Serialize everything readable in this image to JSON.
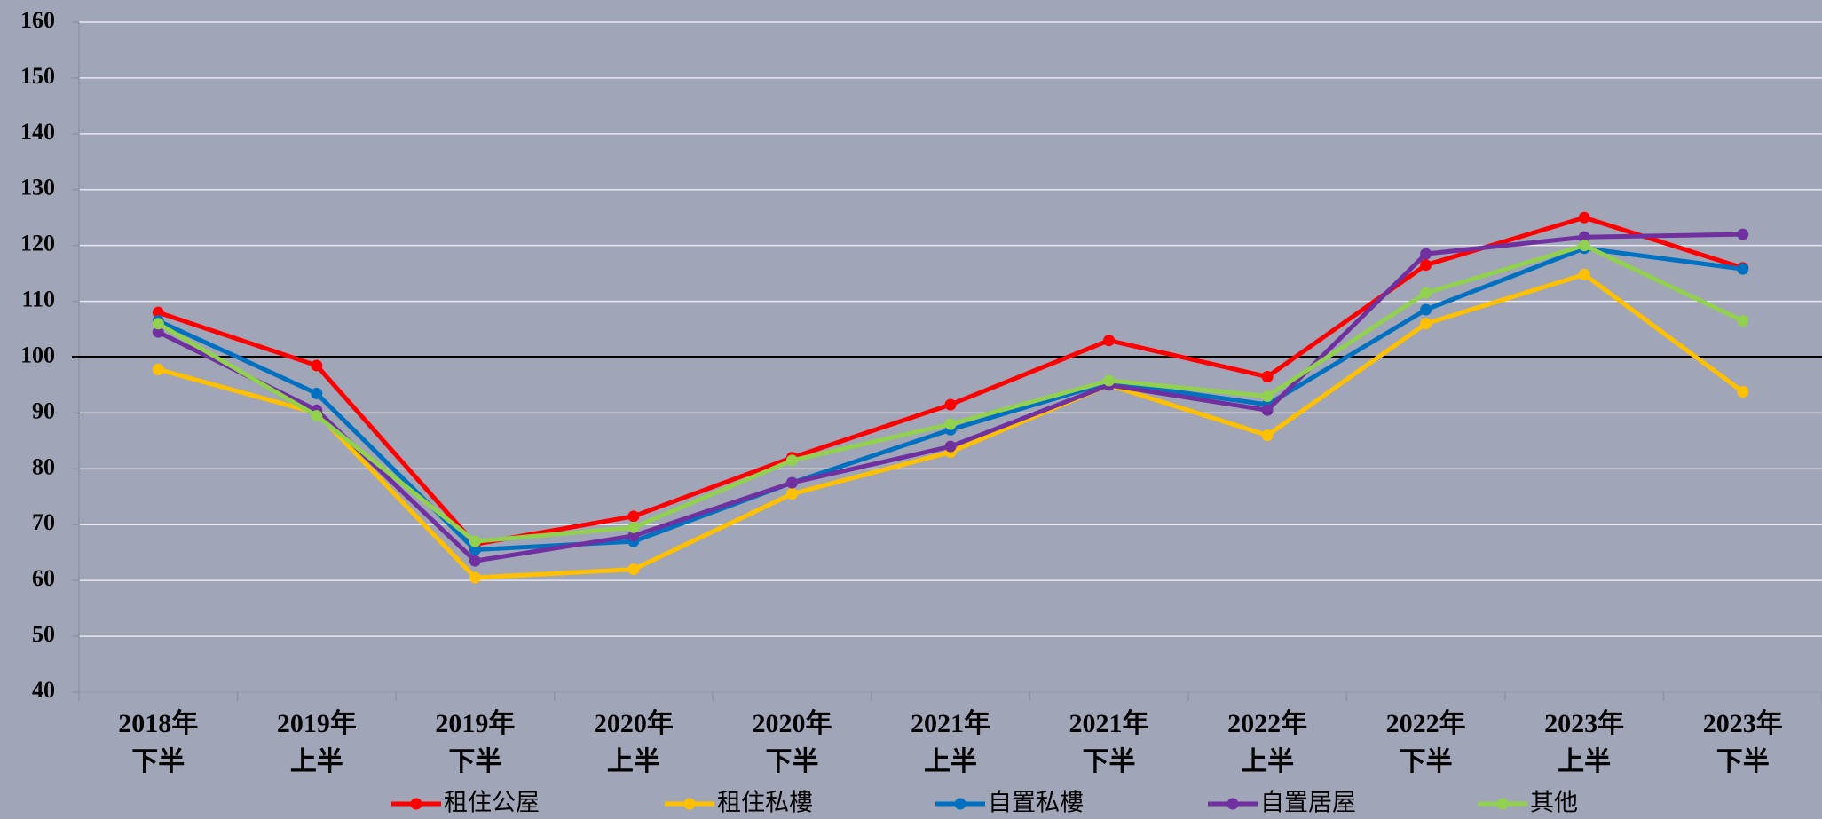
{
  "chart_data": {
    "type": "line",
    "categories": [
      "2018年\n下半",
      "2019年\n上半",
      "2019年\n下半",
      "2020年\n上半",
      "2020年\n下半",
      "2021年\n上半",
      "2021年\n下半",
      "2022年\n上半",
      "2022年\n下半",
      "2023年\n上半",
      "2023年\n下半"
    ],
    "series": [
      {
        "name": "租住公屋",
        "color": "#ff0000",
        "values": [
          108,
          98.5,
          66.5,
          71.5,
          82,
          91.5,
          103,
          96.5,
          116.5,
          125,
          116
        ]
      },
      {
        "name": "租住私樓",
        "color": "#ffc000",
        "values": [
          97.8,
          90,
          60.5,
          62,
          75.5,
          83,
          95,
          86,
          106,
          114.8,
          93.8
        ]
      },
      {
        "name": "自置私樓",
        "color": "#0070c0",
        "values": [
          106.5,
          93.5,
          65.5,
          67,
          77.5,
          87,
          95.5,
          91.5,
          108.5,
          119.5,
          115.8
        ]
      },
      {
        "name": "自置居屋",
        "color": "#7030a0",
        "values": [
          104.5,
          90.5,
          63.5,
          68,
          77.5,
          84,
          95,
          90.5,
          118.5,
          121.5,
          122
        ]
      },
      {
        "name": "其他",
        "color": "#92d050",
        "values": [
          106,
          89.5,
          67,
          69.5,
          81.5,
          88,
          95.8,
          93,
          111.5,
          120,
          106.5
        ]
      }
    ],
    "ylim": [
      40,
      160
    ],
    "yticks": [
      40,
      50,
      60,
      70,
      80,
      90,
      100,
      110,
      120,
      130,
      140,
      150,
      160
    ],
    "grid": true,
    "reference_line": 100,
    "legend": "bottom"
  }
}
